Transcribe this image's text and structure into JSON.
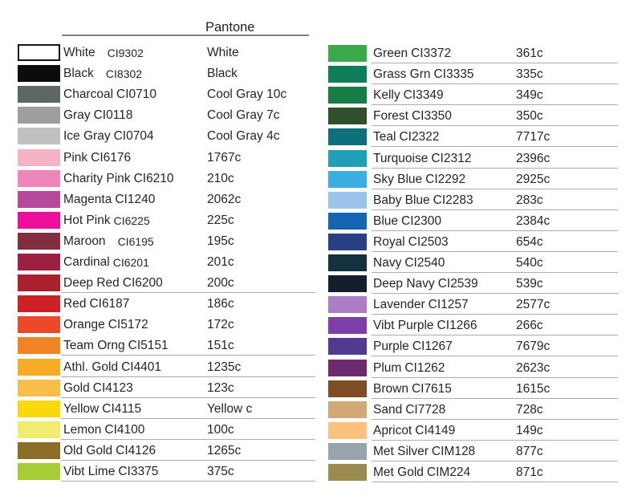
{
  "header": {
    "pantone_label": "Pantone"
  },
  "colors": {
    "text": "#282425",
    "row_line": "#ababab",
    "header_line": "#7f7f7f",
    "background": "#ffffff"
  },
  "columns": [
    {
      "rows": [
        {
          "name": "White",
          "code": "CI9302",
          "pantone": "White",
          "hex": "#ffffff",
          "swatch_border": true,
          "code_small": true,
          "code_gap": true
        },
        {
          "name": "Black",
          "code": "CI8302",
          "pantone": "Black",
          "hex": "#0c0c0c",
          "code_small": true,
          "code_gap": true
        },
        {
          "name": "Charcoal",
          "code": "CI0710",
          "pantone": "Cool Gray 10c",
          "hex": "#5f6763"
        },
        {
          "name": "Gray",
          "code": "CI0118",
          "pantone": "Cool Gray 7c",
          "hex": "#9c9f9e"
        },
        {
          "name": "Ice Gray",
          "code": "CI0704",
          "pantone": "Cool Gray 4c",
          "hex": "#bfc0bf"
        },
        {
          "name": "Pink",
          "code": "CI6176",
          "pantone": "1767c",
          "hex": "#f7b3c6"
        },
        {
          "name": "Charity Pink",
          "code": "CI6210",
          "pantone": "210c",
          "hex": "#ef86ba"
        },
        {
          "name": "Magenta",
          "code": "CI1240",
          "pantone": "2062c",
          "hex": "#b84a9b"
        },
        {
          "name": "Hot Pink",
          "code": "CI6225",
          "pantone": "225c",
          "hex": "#ed109c",
          "code_small": true
        },
        {
          "name": "Maroon",
          "code": "CI6195",
          "pantone": "195c",
          "hex": "#812e40",
          "code_small": true,
          "code_gap": true
        },
        {
          "name": "Cardinal",
          "code": "CI6201",
          "pantone": "201c",
          "hex": "#9d2040",
          "code_small": true
        },
        {
          "name": "Deep Red",
          "code": "CI6200",
          "pantone": "200c",
          "hex": "#a8212c",
          "underline": true
        },
        {
          "name": "Red",
          "code": "CI6187",
          "pantone": "186c",
          "hex": "#cc2127"
        },
        {
          "name": "Orange",
          "code": "CI5172",
          "pantone": "172c",
          "hex": "#ea4a28"
        },
        {
          "name": "Team Orng",
          "code": "CI5151",
          "pantone": "151c",
          "hex": "#ef8325",
          "underline": true
        },
        {
          "name": "Athl. Gold",
          "code": "CI4401",
          "pantone": "1235c",
          "hex": "#f8ac25",
          "underline": true
        },
        {
          "name": "Gold",
          "code": "CI4123",
          "pantone": "123c",
          "hex": "#f9bd4a",
          "underline": true
        },
        {
          "name": "Yellow",
          "code": "CI4115",
          "pantone": "Yellow c",
          "hex": "#f9d80e",
          "underline": true
        },
        {
          "name": "Lemon",
          "code": "CI4100",
          "pantone": "100c",
          "hex": "#f2eb72",
          "underline": true
        },
        {
          "name": "Old Gold",
          "code": "CI4126",
          "pantone": "1265c",
          "hex": "#8a6e26",
          "underline": true
        },
        {
          "name": "Vibt Lime",
          "code": "CI3375",
          "pantone": "375c",
          "hex": "#a8cb38",
          "underline": true
        }
      ]
    },
    {
      "rows": [
        {
          "name": "Green",
          "code": "CI3372",
          "pantone": "361c",
          "hex": "#3aa94b",
          "underline": true
        },
        {
          "name": "Grass Grn",
          "code": "CI3335",
          "pantone": "335c",
          "hex": "#0e7d5a",
          "underline": true
        },
        {
          "name": "Kelly",
          "code": "CI3349",
          "pantone": "349c",
          "hex": "#187c45",
          "underline": true
        },
        {
          "name": "Forest",
          "code": "CI3350",
          "pantone": "350c",
          "hex": "#2f4f2d",
          "underline": true
        },
        {
          "name": "Teal",
          "code": "CI2322",
          "pantone": "7717c",
          "hex": "#0e707d",
          "underline": true
        },
        {
          "name": "Turquoise",
          "code": "CI2312",
          "pantone": "2396c",
          "hex": "#20a0b7",
          "underline": true
        },
        {
          "name": "Sky Blue",
          "code": "CI2292",
          "pantone": "2925c",
          "hex": "#3bafe3",
          "underline": true
        },
        {
          "name": "Baby Blue",
          "code": "CI2283",
          "pantone": "283c",
          "hex": "#9ac4e9",
          "underline": true
        },
        {
          "name": "Blue",
          "code": "CI2300",
          "pantone": "2384c",
          "hex": "#1566b2",
          "underline": true
        },
        {
          "name": "Royal",
          "code": "CI2503",
          "pantone": "654c",
          "hex": "#2a4084",
          "underline": true
        },
        {
          "name": "Navy",
          "code": "CI2540",
          "pantone": "540c",
          "hex": "#15303f",
          "underline": true
        },
        {
          "name": "Deep Navy",
          "code": "CI2539",
          "pantone": "539c",
          "hex": "#131f2d",
          "underline": true
        },
        {
          "name": "Lavender",
          "code": "CI1257",
          "pantone": "2577c",
          "hex": "#ab7dc4",
          "underline": true
        },
        {
          "name": "Vibt Purple",
          "code": "CI1266",
          "pantone": "266c",
          "hex": "#7c3fa9",
          "underline": true
        },
        {
          "name": "Purple",
          "code": "CI1267",
          "pantone": "7679c",
          "hex": "#523a91",
          "underline": true
        },
        {
          "name": "Plum",
          "code": "CI1262",
          "pantone": "2623c",
          "hex": "#6e2a71",
          "underline": true
        },
        {
          "name": "Brown",
          "code": "CI7615",
          "pantone": "1615c",
          "hex": "#7e4c25",
          "underline": true
        },
        {
          "name": "Sand",
          "code": "CI7728",
          "pantone": "728c",
          "hex": "#d3a877",
          "underline": true
        },
        {
          "name": "Apricot",
          "code": "CI4149",
          "pantone": "149c",
          "hex": "#fcc17c",
          "underline": true
        },
        {
          "name": "Met Silver",
          "code": "CIM128",
          "pantone": "877c",
          "hex": "#9aa3ac",
          "underline": true
        },
        {
          "name": "Met Gold",
          "code": "CIM224",
          "pantone": "871c",
          "hex": "#9c8b51",
          "underline": true
        }
      ]
    }
  ]
}
